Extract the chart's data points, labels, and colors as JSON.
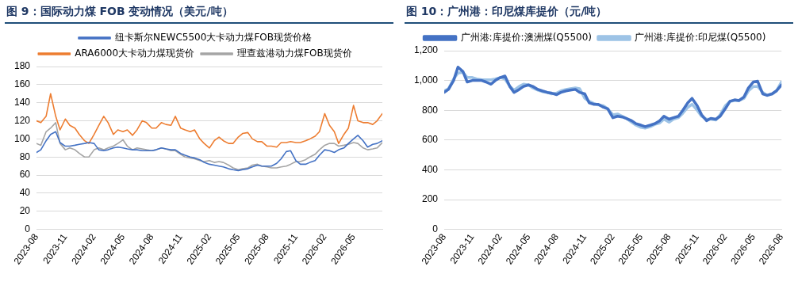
{
  "chart_data": [
    {
      "type": "line",
      "title": "图 9：国际动力煤 FOB 变动情况（美元/吨）",
      "x": [
        "2023-08-01",
        "2023-08-15",
        "2023-09-01",
        "2023-09-15",
        "2023-10-01",
        "2023-10-15",
        "2023-11-01",
        "2023-11-15",
        "2023-12-01",
        "2023-12-15",
        "2024-01-01",
        "2024-01-15",
        "2024-02-01",
        "2024-02-15",
        "2024-03-01",
        "2024-03-15",
        "2024-04-01",
        "2024-04-15",
        "2024-05-01",
        "2024-05-15",
        "2024-06-01",
        "2024-06-15",
        "2024-07-01",
        "2024-07-15",
        "2024-08-01",
        "2024-08-15",
        "2024-09-01",
        "2024-09-15",
        "2024-10-01",
        "2024-10-15",
        "2024-11-01",
        "2024-11-15",
        "2024-12-01",
        "2024-12-15",
        "2025-01-01",
        "2025-01-15",
        "2025-02-01",
        "2025-02-15",
        "2025-03-01",
        "2025-03-15",
        "2025-04-01",
        "2025-04-15",
        "2025-05-01",
        "2025-05-15",
        "2025-06-01",
        "2025-06-15",
        "2025-07-01",
        "2025-07-15",
        "2025-08-01",
        "2025-08-15",
        "2025-09-01",
        "2025-09-15",
        "2025-10-01",
        "2025-10-15",
        "2025-11-01",
        "2025-11-15",
        "2025-12-01",
        "2025-12-15",
        "2026-01-01",
        "2026-01-15",
        "2026-02-01",
        "2026-02-15",
        "2026-03-01",
        "2026-03-15",
        "2026-04-01",
        "2026-04-15",
        "2026-05-01",
        "2026-05-15",
        "2026-06-01",
        "2026-06-15",
        "2026-07-01",
        "2026-07-15",
        "2026-08-01"
      ],
      "series": [
        {
          "name": "纽卡斯尔NEWC5500大卡动力煤FOB现货价格",
          "color": "#4472c4",
          "values": [
            85,
            88,
            98,
            105,
            108,
            96,
            92,
            92,
            93,
            94,
            95,
            96,
            95,
            88,
            87,
            88,
            90,
            91,
            90,
            89,
            88,
            88,
            87,
            87,
            87,
            88,
            90,
            89,
            88,
            88,
            84,
            82,
            80,
            79,
            77,
            74,
            72,
            71,
            70,
            69,
            67,
            66,
            65,
            66,
            67,
            69,
            71,
            70,
            70,
            70,
            73,
            78,
            86,
            87,
            76,
            72,
            72,
            74,
            76,
            82,
            88,
            87,
            85,
            88,
            90,
            95,
            100,
            104,
            98,
            91,
            94,
            95,
            98
          ]
        },
        {
          "name": "ARA6000大卡动力煤现货价",
          "color": "#ed7d31",
          "values": [
            120,
            118,
            125,
            150,
            125,
            110,
            122,
            115,
            112,
            105,
            98,
            95,
            105,
            115,
            125,
            118,
            105,
            110,
            108,
            110,
            104,
            110,
            120,
            118,
            112,
            112,
            118,
            116,
            115,
            125,
            112,
            110,
            108,
            110,
            100,
            95,
            90,
            98,
            102,
            98,
            95,
            95,
            102,
            106,
            107,
            100,
            97,
            97,
            92,
            92,
            91,
            96,
            96,
            97,
            96,
            96,
            98,
            100,
            103,
            108,
            128,
            115,
            108,
            95,
            105,
            112,
            137,
            120,
            118,
            118,
            116,
            120,
            128
          ]
        },
        {
          "name": "理查兹港动力煤FOB现货价",
          "color": "#a5a5a5",
          "values": [
            95,
            93,
            108,
            112,
            118,
            95,
            88,
            90,
            88,
            84,
            80,
            80,
            88,
            90,
            88,
            90,
            92,
            95,
            99,
            92,
            88,
            90,
            89,
            88,
            87,
            88,
            90,
            89,
            87,
            87,
            83,
            80,
            79,
            78,
            76,
            75,
            76,
            74,
            75,
            74,
            71,
            68,
            66,
            67,
            68,
            71,
            72,
            70,
            69,
            68,
            68,
            69,
            70,
            72,
            75,
            75,
            77,
            80,
            83,
            88,
            93,
            95,
            95,
            92,
            93,
            94,
            96,
            95,
            90,
            88,
            89,
            90,
            96
          ]
        }
      ],
      "xlim": [
        "2023-08",
        "2026-08"
      ],
      "xticks": [
        "2023-08",
        "2023-11",
        "2024-02",
        "2024-05",
        "2024-08",
        "2024-11",
        "2025-02",
        "2025-05",
        "2025-08",
        "2025-11",
        "2026-02",
        "2026-05"
      ],
      "ylim": [
        0,
        180
      ],
      "yticks": [
        0,
        20,
        40,
        60,
        80,
        100,
        120,
        140,
        160,
        180
      ],
      "grid": "y",
      "legend": "top",
      "marker": "none",
      "line_style": "solid"
    },
    {
      "type": "line",
      "title": "图 10：广州港：印尼煤库提价（元/吨）",
      "x": [
        "2023-08-01",
        "2023-08-15",
        "2023-09-01",
        "2023-09-15",
        "2023-10-01",
        "2023-10-15",
        "2023-11-01",
        "2023-11-15",
        "2023-12-01",
        "2023-12-15",
        "2024-01-01",
        "2024-01-15",
        "2024-02-01",
        "2024-02-15",
        "2024-03-01",
        "2024-03-15",
        "2024-04-01",
        "2024-04-15",
        "2024-05-01",
        "2024-05-15",
        "2024-06-01",
        "2024-06-15",
        "2024-07-01",
        "2024-07-15",
        "2024-08-01",
        "2024-08-15",
        "2024-09-01",
        "2024-09-15",
        "2024-10-01",
        "2024-10-15",
        "2024-11-01",
        "2024-11-15",
        "2024-12-01",
        "2024-12-15",
        "2025-01-01",
        "2025-01-15",
        "2025-02-01",
        "2025-02-15",
        "2025-03-01",
        "2025-03-15",
        "2025-04-01",
        "2025-04-15",
        "2025-05-01",
        "2025-05-15",
        "2025-06-01",
        "2025-06-15",
        "2025-07-01",
        "2025-07-15",
        "2025-08-01",
        "2025-08-15",
        "2025-09-01",
        "2025-09-15",
        "2025-10-01",
        "2025-10-15",
        "2025-11-01",
        "2025-11-15",
        "2025-12-01",
        "2025-12-15",
        "2026-01-01",
        "2026-01-15",
        "2026-02-01",
        "2026-02-15",
        "2026-03-01",
        "2026-03-15",
        "2026-04-01",
        "2026-04-15",
        "2026-05-01",
        "2026-05-15",
        "2026-06-01",
        "2026-06-15",
        "2026-07-01",
        "2026-07-15",
        "2026-08-01"
      ],
      "series": [
        {
          "name": "广州港:库提价:澳洲煤(Q5500)",
          "color": "#4472c4",
          "values": [
            920,
            940,
            1000,
            1090,
            1060,
            990,
            1000,
            1000,
            1000,
            990,
            975,
            1000,
            1020,
            1030,
            960,
            920,
            940,
            960,
            970,
            960,
            940,
            930,
            920,
            915,
            905,
            920,
            930,
            935,
            940,
            920,
            910,
            850,
            840,
            840,
            820,
            810,
            750,
            760,
            755,
            745,
            730,
            710,
            700,
            690,
            700,
            710,
            730,
            760,
            740,
            750,
            760,
            800,
            850,
            880,
            830,
            770,
            730,
            745,
            740,
            760,
            810,
            860,
            870,
            865,
            890,
            950,
            990,
            995,
            910,
            900,
            910,
            930,
            970
          ]
        },
        {
          "name": "广州港:库提价:印尼煤(Q5500)",
          "color": "#9dc3e6",
          "values": [
            930,
            945,
            1010,
            1050,
            1055,
            1020,
            1020,
            1010,
            1005,
            1005,
            1005,
            1010,
            1020,
            1010,
            960,
            935,
            960,
            975,
            970,
            950,
            935,
            925,
            920,
            910,
            915,
            930,
            940,
            945,
            950,
            945,
            880,
            860,
            845,
            835,
            830,
            810,
            770,
            775,
            760,
            745,
            720,
            700,
            685,
            680,
            690,
            705,
            715,
            740,
            720,
            740,
            750,
            780,
            820,
            840,
            800,
            760,
            740,
            740,
            735,
            770,
            830,
            860,
            865,
            865,
            880,
            930,
            960,
            960,
            920,
            900,
            910,
            930,
            990
          ]
        }
      ],
      "xlim": [
        "2023-08",
        "2026-08"
      ],
      "xticks": [
        "2023-08",
        "2023-11",
        "2024-02",
        "2024-05",
        "2024-08",
        "2024-11",
        "2025-02",
        "2025-05",
        "2025-08",
        "2025-11",
        "2026-02",
        "2026-05",
        "2026-08"
      ],
      "ylim": [
        0,
        1200
      ],
      "yticks": [
        0,
        {
          "value": 200,
          "label": "200"
        },
        400,
        600,
        800,
        {
          "value": 1000,
          "label": "1,000"
        },
        {
          "value": 1200,
          "label": "1,200"
        }
      ],
      "grid": "y",
      "legend": "top",
      "marker": "none",
      "line_style": "solid"
    }
  ]
}
